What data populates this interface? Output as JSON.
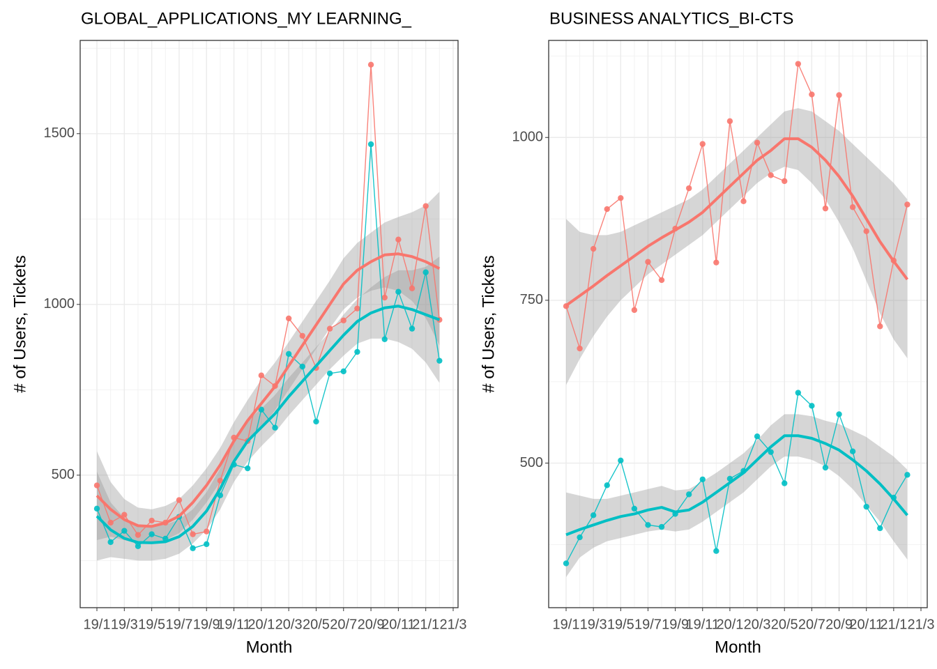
{
  "chart_data": [
    {
      "type": "line",
      "title": "GLOBAL_APPLICATIONS_MY LEARNING_",
      "x_label": "Month",
      "y_label": "# of Users, Tickets",
      "categories": [
        "19/1",
        null,
        "19/3",
        null,
        "19/5",
        null,
        "19/7",
        null,
        "19/9",
        null,
        "19/11",
        null,
        "20/1",
        null,
        "20/3",
        null,
        "20/5",
        null,
        "20/7",
        null,
        "20/9",
        null,
        "20/11",
        null,
        "21/1",
        null,
        "21/3"
      ],
      "ylim": [
        112,
        1773
      ],
      "yticks": [
        500,
        1000,
        1500
      ],
      "grid": true,
      "series": [
        {
          "color": "#F8766D",
          "values": [
            470,
            361,
            384,
            325,
            367,
            361,
            427,
            327,
            335,
            484,
            610,
            600,
            792,
            761,
            959,
            908,
            814,
            929,
            953,
            988,
            1702,
            1020,
            1190,
            1047,
            1288,
            955,
            null
          ],
          "smooth": {
            "fit": [
              440,
              400,
              370,
              352,
              350,
              360,
              380,
              420,
              470,
              530,
              600,
              660,
              710,
              760,
              820,
              880,
              940,
              1000,
              1060,
              1100,
              1125,
              1145,
              1148,
              1140,
              1125,
              1105,
              null
            ],
            "lower": [
              310,
              320,
              310,
              300,
              300,
              310,
              330,
              370,
              420,
              480,
              545,
              600,
              640,
              690,
              750,
              810,
              870,
              930,
              985,
              1020,
              1040,
              1050,
              1040,
              1010,
              960,
              880,
              null
            ],
            "upper": [
              570,
              480,
              430,
              405,
              400,
              410,
              430,
              470,
              520,
              580,
              655,
              720,
              780,
              830,
              890,
              950,
              1010,
              1070,
              1135,
              1180,
              1210,
              1240,
              1256,
              1270,
              1290,
              1330,
              null
            ]
          }
        },
        {
          "color": "#00BFC4",
          "values": [
            402,
            304,
            337,
            292,
            327,
            314,
            378,
            286,
            298,
            441,
            531,
            520,
            692,
            639,
            855,
            818,
            657,
            798,
            804,
            861,
            1469,
            898,
            1037,
            929,
            1094,
            835,
            null
          ],
          "smooth": {
            "fit": [
              380,
              340,
              315,
              303,
              302,
              305,
              320,
              350,
              395,
              460,
              540,
              600,
              640,
              680,
              730,
              775,
              820,
              865,
              910,
              950,
              975,
              990,
              995,
              985,
              970,
              955,
              null
            ],
            "lower": [
              250,
              260,
              255,
              250,
              250,
              255,
              270,
              300,
              340,
              400,
              480,
              540,
              585,
              625,
              675,
              720,
              765,
              810,
              850,
              885,
              900,
              900,
              890,
              870,
              830,
              770,
              null
            ],
            "upper": [
              510,
              420,
              375,
              355,
              354,
              355,
              370,
              400,
              450,
              520,
              600,
              660,
              695,
              735,
              785,
              830,
              875,
              920,
              970,
              1015,
              1050,
              1080,
              1100,
              1100,
              1110,
              1140,
              null
            ]
          }
        }
      ]
    },
    {
      "type": "line",
      "title": "BUSINESS ANALYTICS_BI-CTS",
      "x_label": "Month",
      "y_label": "# of Users, Tickets",
      "categories": [
        "19/1",
        null,
        "19/3",
        null,
        "19/5",
        null,
        "19/7",
        null,
        "19/9",
        null,
        "19/11",
        null,
        "20/1",
        null,
        "20/3",
        null,
        "20/5",
        null,
        "20/7",
        null,
        "20/9",
        null,
        "20/11",
        null,
        "21/1",
        null,
        "21/3"
      ],
      "ylim": [
        278,
        1149
      ],
      "yticks": [
        500,
        750,
        1000
      ],
      "grid": true,
      "series": [
        {
          "color": "#F8766D",
          "values": [
            741,
            676,
            829,
            890,
            907,
            735,
            809,
            781,
            860,
            922,
            990,
            808,
            1025,
            902,
            992,
            942,
            933,
            1113,
            1066,
            891,
            1065,
            893,
            856,
            710,
            811,
            897,
            null
          ],
          "smooth": {
            "fit": [
              742,
              757,
              772,
              788,
              803,
              818,
              833,
              846,
              858,
              870,
              885,
              905,
              925,
              945,
              965,
              980,
              998,
              998,
              985,
              965,
              940,
              910,
              875,
              840,
              810,
              782,
              null
            ],
            "lower": [
              620,
              660,
              695,
              725,
              750,
              770,
              790,
              805,
              820,
              835,
              850,
              870,
              890,
              910,
              930,
              945,
              955,
              950,
              930,
              905,
              870,
              830,
              780,
              730,
              690,
              661,
              null
            ],
            "upper": [
              875,
              855,
              850,
              850,
              855,
              865,
              875,
              885,
              895,
              905,
              920,
              940,
              960,
              980,
              1000,
              1020,
              1040,
              1045,
              1040,
              1025,
              1010,
              990,
              970,
              950,
              930,
              905,
              null
            ]
          }
        },
        {
          "color": "#00BFC4",
          "values": [
            346,
            386,
            420,
            466,
            504,
            430,
            405,
            402,
            422,
            452,
            475,
            365,
            476,
            488,
            541,
            517,
            469,
            608,
            588,
            493,
            575,
            518,
            433,
            400,
            447,
            482,
            null
          ],
          "smooth": {
            "fit": [
              390,
              398,
              405,
              412,
              418,
              422,
              428,
              432,
              425,
              428,
              440,
              455,
              470,
              485,
              505,
              525,
              542,
              542,
              538,
              530,
              520,
              505,
              488,
              468,
              445,
              420,
              null
            ],
            "lower": [
              325,
              355,
              370,
              380,
              385,
              390,
              395,
              398,
              395,
              398,
              410,
              425,
              440,
              455,
              475,
              495,
              510,
              510,
              505,
              495,
              480,
              460,
              435,
              410,
              380,
              352,
              null
            ],
            "upper": [
              455,
              450,
              445,
              445,
              450,
              455,
              460,
              465,
              458,
              460,
              472,
              485,
              500,
              515,
              535,
              558,
              575,
              575,
              572,
              565,
              560,
              550,
              540,
              525,
              510,
              490,
              null
            ]
          }
        }
      ]
    }
  ]
}
